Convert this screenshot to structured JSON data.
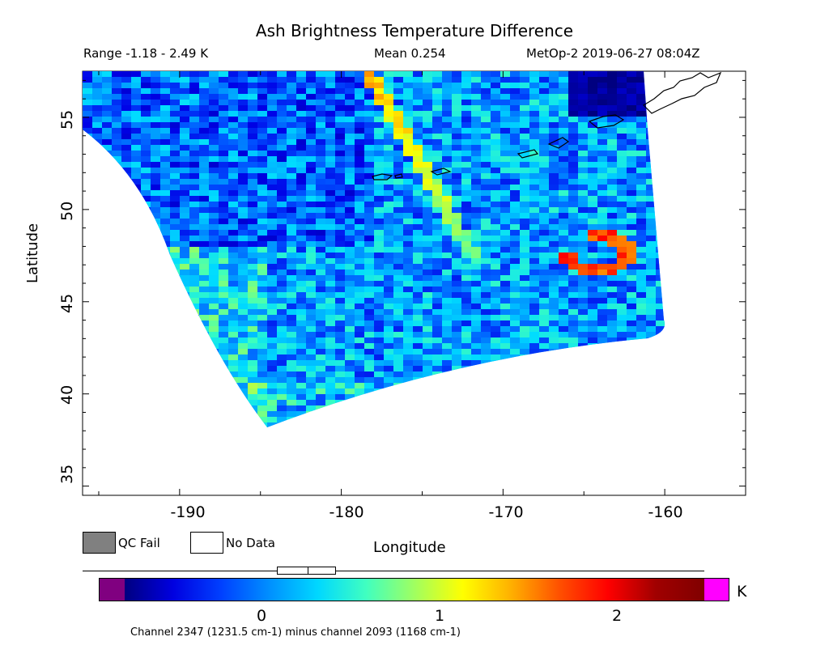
{
  "header": {
    "title": "Ash Brightness Temperature Difference",
    "range": "Range -1.18 - 2.49 K",
    "mean": "Mean 0.254",
    "satellite_time": "MetOp-2 2019-06-27 08:04Z"
  },
  "axes": {
    "ylabel": "Latitude",
    "xlabel": "Longitude",
    "x_ticks": [
      "-190",
      "-180",
      "-170",
      "-160"
    ],
    "y_ticks": [
      "35",
      "40",
      "45",
      "50",
      "55"
    ]
  },
  "legend": {
    "qc_fail": "QC Fail",
    "no_data": "No Data"
  },
  "colorbar": {
    "ticks": [
      "0",
      "1",
      "2"
    ],
    "unit": "K",
    "caption": "Channel 2347 (1231.5 cm-1) minus channel 2093 (1168 cm-1)",
    "low_color": "#800080",
    "high_color": "#ff00ff"
  },
  "colors": {
    "qc_fail": "#808080",
    "background_field": "#3c8cff"
  },
  "chart_data": {
    "type": "heatmap",
    "title": "Ash Brightness Temperature Difference",
    "xlabel": "Longitude",
    "ylabel": "Latitude",
    "xlim": [
      -196,
      -155
    ],
    "ylim": [
      34.5,
      57.5
    ],
    "value_range": [
      -1.18,
      2.49
    ],
    "mean": 0.254,
    "colorbar_range": [
      -0.65,
      2.5
    ],
    "box_plot": {
      "lower": 0.08,
      "median": 0.25,
      "upper": 0.42
    },
    "features": [
      {
        "name": "diagonal plume",
        "lon_start": -178.5,
        "lat_start": 57.3,
        "lon_end": -172,
        "lat_end": 47.3,
        "value": 1.3
      },
      {
        "name": "ash cloud",
        "lon_center": -164.5,
        "lat_center": 47.8,
        "value": 2.0
      }
    ]
  }
}
